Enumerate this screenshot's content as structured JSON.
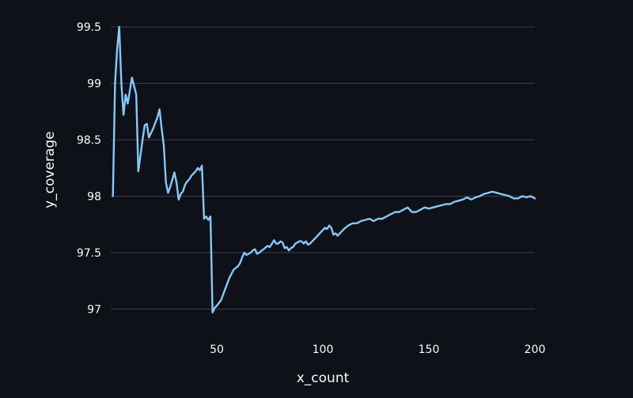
{
  "chart_data": {
    "type": "line",
    "title": "",
    "xlabel": "x_count",
    "ylabel": "y_coverage",
    "xlim": [
      0,
      200
    ],
    "ylim": [
      96.8,
      99.5
    ],
    "xticks": [
      50,
      100,
      150,
      200
    ],
    "yticks": [
      97,
      97.5,
      98,
      98.5,
      99,
      99.5
    ],
    "ytick_labels": [
      "97",
      "97.5",
      "98",
      "98.5",
      "99",
      "99.5"
    ],
    "grid": true,
    "colors": {
      "background": "#0e1117",
      "grid": "#3a3f4b",
      "text": "#fafafa",
      "series": "#83c9ff"
    },
    "series": [
      {
        "color": "#83c9ff",
        "x": [
          1,
          2,
          3,
          4,
          5,
          6,
          7,
          8,
          10,
          12,
          13,
          15,
          16,
          17,
          18,
          20,
          22,
          23,
          24,
          25,
          26,
          27,
          28,
          30,
          31,
          32,
          33,
          34,
          35,
          36,
          37,
          38,
          40,
          41,
          42,
          43,
          44,
          45,
          46,
          47,
          48,
          49,
          50,
          52,
          54,
          56,
          58,
          60,
          61,
          62,
          63,
          64,
          65,
          66,
          67,
          68,
          69,
          70,
          72,
          74,
          75,
          76,
          77,
          78,
          79,
          80,
          81,
          82,
          83,
          84,
          85,
          86,
          87,
          88,
          89,
          90,
          91,
          92,
          93,
          94,
          95,
          96,
          97,
          98,
          99,
          100,
          101,
          102,
          103,
          104,
          105,
          106,
          107,
          108,
          109,
          110,
          112,
          114,
          116,
          118,
          120,
          122,
          124,
          126,
          128,
          130,
          132,
          134,
          136,
          138,
          140,
          142,
          144,
          146,
          148,
          150,
          152,
          154,
          156,
          158,
          160,
          162,
          164,
          166,
          168,
          170,
          172,
          174,
          176,
          178,
          180,
          182,
          184,
          186,
          188,
          190,
          192,
          194,
          196,
          198,
          200
        ],
        "y": [
          98.0,
          99.0,
          99.3,
          99.5,
          99.0,
          98.72,
          98.9,
          98.82,
          99.05,
          98.9,
          98.22,
          98.5,
          98.63,
          98.64,
          98.52,
          98.6,
          98.7,
          98.77,
          98.6,
          98.45,
          98.12,
          98.03,
          98.08,
          98.21,
          98.12,
          97.97,
          98.02,
          98.04,
          98.1,
          98.13,
          98.15,
          98.18,
          98.22,
          98.25,
          98.23,
          98.27,
          97.8,
          97.82,
          97.79,
          97.82,
          96.97,
          97.01,
          97.03,
          97.08,
          97.18,
          97.28,
          97.35,
          97.38,
          97.41,
          97.46,
          97.5,
          97.48,
          97.49,
          97.5,
          97.52,
          97.53,
          97.49,
          97.5,
          97.53,
          97.56,
          97.55,
          97.58,
          97.61,
          97.58,
          97.58,
          97.6,
          97.59,
          97.54,
          97.55,
          97.52,
          97.54,
          97.55,
          97.58,
          97.59,
          97.6,
          97.6,
          97.58,
          97.6,
          97.57,
          97.58,
          97.6,
          97.62,
          97.64,
          97.66,
          97.68,
          97.7,
          97.72,
          97.71,
          97.74,
          97.72,
          97.66,
          97.67,
          97.65,
          97.67,
          97.69,
          97.71,
          97.74,
          97.76,
          97.76,
          97.78,
          97.79,
          97.8,
          97.78,
          97.8,
          97.8,
          97.82,
          97.84,
          97.86,
          97.86,
          97.88,
          97.9,
          97.86,
          97.86,
          97.88,
          97.9,
          97.89,
          97.9,
          97.91,
          97.92,
          97.93,
          97.93,
          97.95,
          97.96,
          97.97,
          97.99,
          97.97,
          97.99,
          98.0,
          98.02,
          98.03,
          98.04,
          98.03,
          98.02,
          98.01,
          98.0,
          97.98,
          97.98,
          98.0,
          97.99,
          98.0,
          97.98
        ]
      }
    ]
  }
}
